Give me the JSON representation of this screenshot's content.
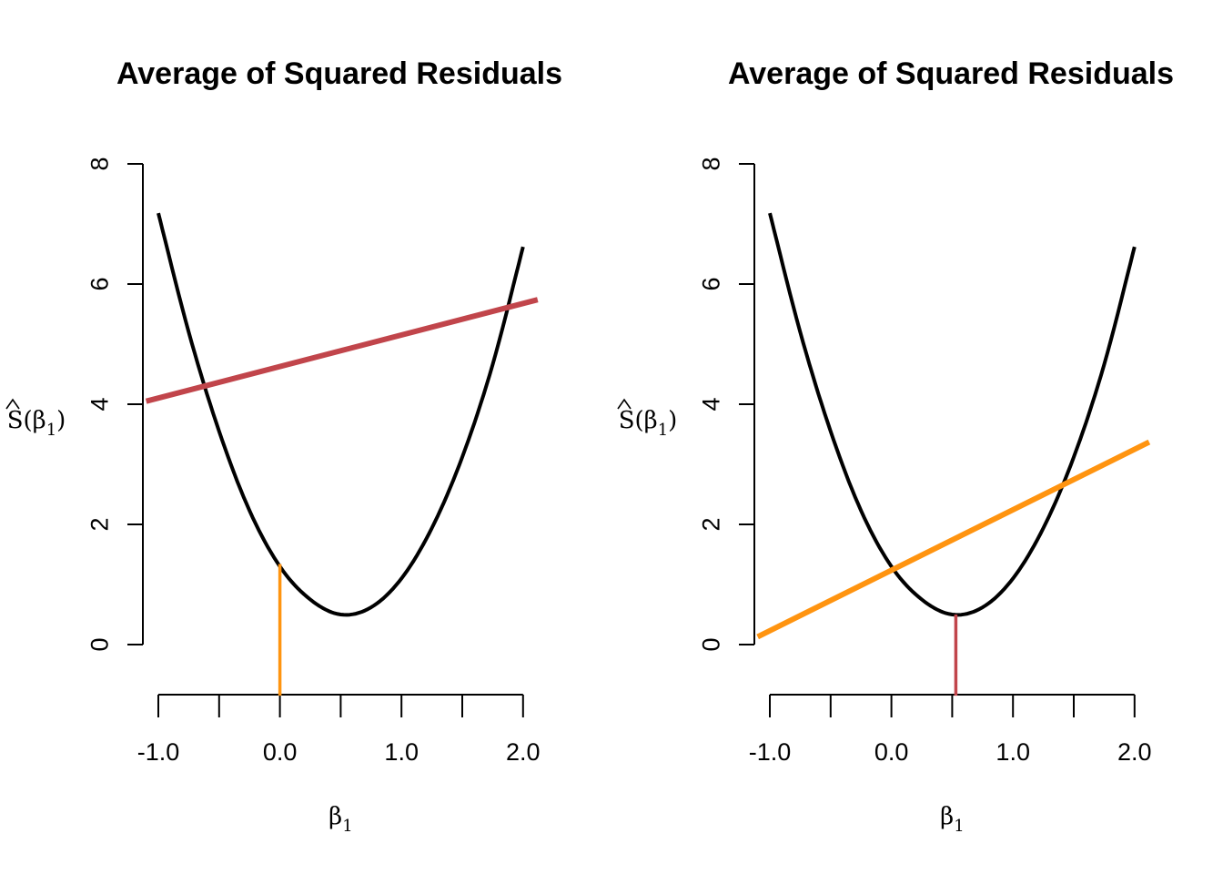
{
  "chart_data": [
    {
      "type": "line",
      "title": "Average of Squared Residuals",
      "xlabel": "β1",
      "ylabel": "Ŝ(β1)",
      "xlim": [
        -1.1,
        2.12
      ],
      "ylim": [
        -0.85,
        8.0
      ],
      "x_ticks": [
        -1.0,
        -0.5,
        0.0,
        0.5,
        1.0,
        1.5,
        2.0
      ],
      "x_tick_labels": [
        "-1.0",
        "0.0",
        "1.0",
        "2.0"
      ],
      "y_ticks": [
        0,
        2,
        4,
        6,
        8
      ],
      "y_tick_labels": [
        "0",
        "2",
        "4",
        "6",
        "8"
      ],
      "grid": false,
      "series": [
        {
          "color": "#000000",
          "kind": "curve",
          "x": [
            -1.0,
            -0.75,
            -0.5,
            -0.25,
            0.0,
            0.25,
            0.5,
            0.75,
            1.0,
            1.25,
            1.5,
            1.75,
            2.0
          ],
          "y": [
            7.18,
            5.2,
            3.55,
            2.23,
            1.3,
            0.75,
            0.5,
            0.62,
            1.1,
            1.94,
            3.12,
            4.66,
            6.62
          ]
        },
        {
          "color": "#C1454B",
          "kind": "line",
          "x": [
            -1.1,
            2.12
          ],
          "y": [
            4.05,
            5.74
          ]
        },
        {
          "color": "#FF9410",
          "kind": "segment",
          "x": [
            0.0,
            0.0
          ],
          "y": [
            -0.85,
            1.34
          ]
        }
      ]
    },
    {
      "type": "line",
      "title": "Average of Squared Residuals",
      "xlabel": "β1",
      "ylabel": "Ŝ(β1)",
      "xlim": [
        -1.1,
        2.12
      ],
      "ylim": [
        -0.85,
        8.0
      ],
      "x_ticks": [
        -1.0,
        -0.5,
        0.0,
        0.5,
        1.0,
        1.5,
        2.0
      ],
      "x_tick_labels": [
        "-1.0",
        "0.0",
        "1.0",
        "2.0"
      ],
      "y_ticks": [
        0,
        2,
        4,
        6,
        8
      ],
      "y_tick_labels": [
        "0",
        "2",
        "4",
        "6",
        "8"
      ],
      "grid": false,
      "series": [
        {
          "color": "#000000",
          "kind": "curve",
          "x": [
            -1.0,
            -0.75,
            -0.5,
            -0.25,
            0.0,
            0.25,
            0.5,
            0.75,
            1.0,
            1.25,
            1.5,
            1.75,
            2.0
          ],
          "y": [
            7.18,
            5.2,
            3.55,
            2.23,
            1.3,
            0.75,
            0.5,
            0.62,
            1.1,
            1.94,
            3.12,
            4.66,
            6.62
          ]
        },
        {
          "color": "#FF9410",
          "kind": "line",
          "x": [
            -1.1,
            2.12
          ],
          "y": [
            0.13,
            3.37
          ]
        },
        {
          "color": "#C1454B",
          "kind": "segment",
          "x": [
            0.53,
            0.53
          ],
          "y": [
            -0.85,
            0.5
          ]
        }
      ]
    }
  ]
}
